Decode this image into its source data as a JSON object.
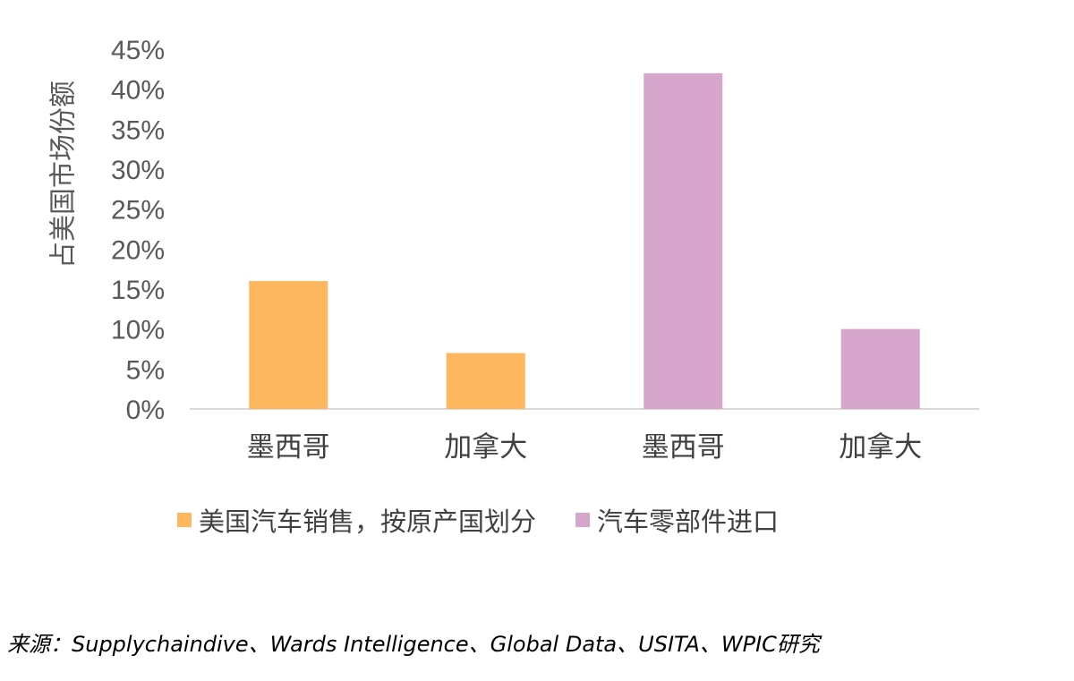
{
  "chart_data": {
    "type": "bar",
    "categories": [
      "墨西哥",
      "加拿大",
      "墨西哥",
      "加拿大"
    ],
    "series": [
      {
        "name": "美国汽车销售，按原产国划分",
        "color": "#FDB85F",
        "values": [
          16,
          7,
          null,
          null
        ]
      },
      {
        "name": "汽车零部件进口",
        "color": "#D7A6CD",
        "values": [
          null,
          null,
          42,
          10
        ]
      }
    ],
    "ylabel": "占美国市场份额",
    "ylim": [
      0,
      45
    ],
    "yticks": [
      "0%",
      "5%",
      "10%",
      "15%",
      "20%",
      "25%",
      "30%",
      "35%",
      "40%",
      "45%"
    ],
    "legend_position": "bottom",
    "grid": false
  },
  "source_note": "来源：Supplychaindive、Wards Intelligence、Global Data、USITA、WPIC研究"
}
